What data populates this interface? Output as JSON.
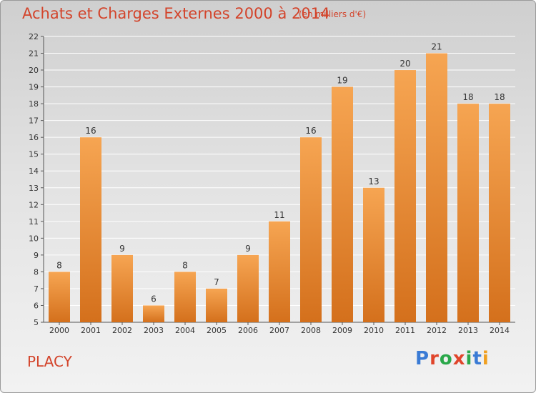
{
  "header": {
    "title": "Achats et Charges Externes 2000 à 2014",
    "subtitle": "(en milliers d'€)"
  },
  "footer": {
    "city": "PLACY",
    "logo_text": "Proxiti"
  },
  "colors": {
    "bar_top": "#f6a552",
    "bar_bottom": "#d4701c",
    "title": "#d3442b",
    "logo": [
      "#3a7bd5",
      "#e0452b",
      "#2aa84a",
      "#e0452b",
      "#2aa84a",
      "#3a7bd5",
      "#f0a020"
    ]
  },
  "chart_data": {
    "type": "bar",
    "categories": [
      "2000",
      "2001",
      "2002",
      "2003",
      "2004",
      "2005",
      "2006",
      "2007",
      "2008",
      "2009",
      "2010",
      "2011",
      "2012",
      "2013",
      "2014"
    ],
    "values": [
      8,
      16,
      9,
      6,
      8,
      7,
      9,
      11,
      16,
      19,
      13,
      20,
      21,
      18,
      18
    ],
    "ylim": [
      5,
      22
    ],
    "yticks": [
      5,
      6,
      7,
      8,
      9,
      10,
      11,
      12,
      13,
      14,
      15,
      16,
      17,
      18,
      19,
      20,
      21,
      22
    ],
    "grid": true,
    "legend": "none"
  }
}
